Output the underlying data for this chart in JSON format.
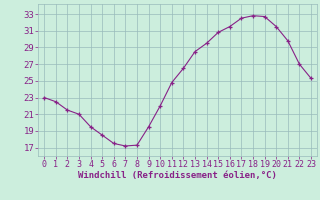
{
  "x": [
    0,
    1,
    2,
    3,
    4,
    5,
    6,
    7,
    8,
    9,
    10,
    11,
    12,
    13,
    14,
    15,
    16,
    17,
    18,
    19,
    20,
    21,
    22,
    23
  ],
  "y": [
    23,
    22.5,
    21.5,
    21,
    19.5,
    18.5,
    17.5,
    17.2,
    17.3,
    19.5,
    22,
    24.8,
    26.5,
    28.5,
    29.5,
    30.8,
    31.5,
    32.5,
    32.8,
    32.7,
    31.5,
    29.8,
    27,
    25.3
  ],
  "line_color": "#882288",
  "marker_color": "#882288",
  "bg_color": "#cceedd",
  "grid_color": "#99bbbb",
  "xlabel": "Windchill (Refroidissement éolien,°C)",
  "ylabel_ticks": [
    17,
    19,
    21,
    23,
    25,
    27,
    29,
    31,
    33
  ],
  "xtick_labels": [
    "0",
    "1",
    "2",
    "3",
    "4",
    "5",
    "6",
    "7",
    "8",
    "9",
    "10",
    "11",
    "12",
    "13",
    "14",
    "15",
    "16",
    "17",
    "18",
    "19",
    "20",
    "21",
    "22",
    "23"
  ],
  "ylim": [
    16.0,
    34.2
  ],
  "xlim": [
    -0.5,
    23.5
  ],
  "axis_label_color": "#882288",
  "tick_color": "#882288",
  "font_size_xlabel": 6.5,
  "font_size_yticks": 6.5,
  "font_size_xticks": 6.0
}
